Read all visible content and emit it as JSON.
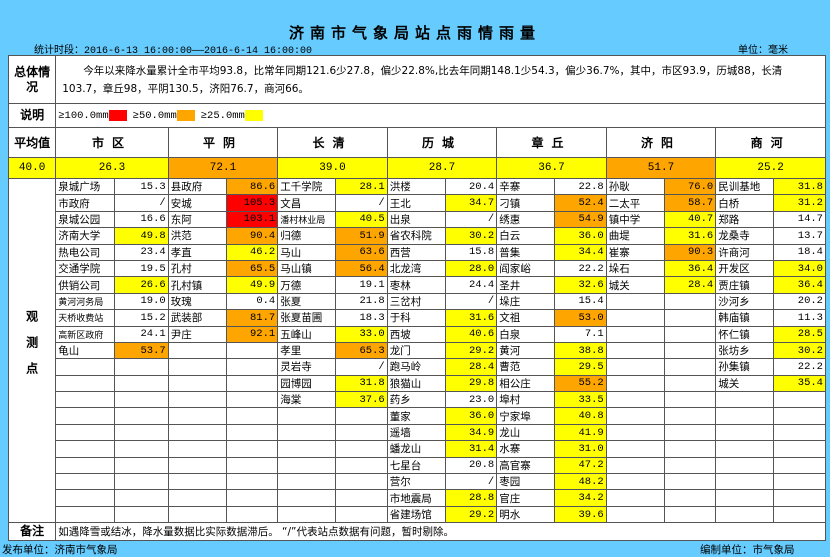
{
  "title": "济南市气象局站点雨情雨量",
  "period": "统计时段：2016-6-13 16:00:00——2016-6-14 16:00:00",
  "unit": "单位：毫米",
  "summary": {
    "label": "总体情况",
    "text": "今年以来降水量累计全市平均93.8，比常年同期121.6少27.8，偏少22.8%,比去年同期148.1少54.3，偏少36.7%，其中，市区93.9，历城88，长清103.7，章丘98，平阴130.5，济阳76.7，商河66。"
  },
  "legend": {
    "label": "说明",
    "items": [
      {
        "text": "≥100.0mm",
        "color": "#ff0000",
        "min": 100
      },
      {
        "text": "≥50.0mm",
        "color": "#ffa500",
        "min": 50
      },
      {
        "text": "≥25.0mm",
        "color": "#ffff00",
        "min": 25
      }
    ]
  },
  "average": {
    "label": "平均值",
    "value": "40.0"
  },
  "stations_label": "观测点",
  "districts": [
    {
      "name": "市区",
      "avg": "26.3",
      "stations": [
        [
          "泉城广场",
          "15.3"
        ],
        [
          "市政府",
          "/"
        ],
        [
          "泉城公园",
          "16.6"
        ],
        [
          "济南大学",
          "49.8"
        ],
        [
          "热电公司",
          "23.4"
        ],
        [
          "交通学院",
          "19.5"
        ],
        [
          "供销公司",
          "26.6"
        ],
        [
          "黄河河务局",
          "19.0"
        ],
        [
          "天桥收费站",
          "15.2"
        ],
        [
          "高新区政府",
          "24.1"
        ],
        [
          "龟山",
          "53.7"
        ]
      ]
    },
    {
      "name": "平阴",
      "avg": "72.1",
      "stations": [
        [
          "县政府",
          "86.6"
        ],
        [
          "安城",
          "105.3"
        ],
        [
          "东阿",
          "103.1"
        ],
        [
          "洪范",
          "90.4"
        ],
        [
          "孝直",
          "46.2"
        ],
        [
          "孔村",
          "65.5"
        ],
        [
          "孔村镇",
          "49.9"
        ],
        [
          "玫瑰",
          "0.4"
        ],
        [
          "武装部",
          "81.7"
        ],
        [
          "尹庄",
          "92.1"
        ]
      ]
    },
    {
      "name": "长清",
      "avg": "39.0",
      "stations": [
        [
          "工千学院",
          "28.1"
        ],
        [
          "文昌",
          "/"
        ],
        [
          "潘村林业局",
          "40.5"
        ],
        [
          "归德",
          "51.9"
        ],
        [
          "马山",
          "63.6"
        ],
        [
          "马山镇",
          "56.4"
        ],
        [
          "万德",
          "19.1"
        ],
        [
          "张夏",
          "21.8"
        ],
        [
          "张夏苗圃",
          "18.3"
        ],
        [
          "五峰山",
          "33.0"
        ],
        [
          "孝里",
          "65.3"
        ],
        [
          "灵岩寺",
          "/"
        ],
        [
          "园博园",
          "31.8"
        ],
        [
          "海棠",
          "37.6"
        ]
      ]
    },
    {
      "name": "历城",
      "avg": "28.7",
      "stations": [
        [
          "洪楼",
          "20.4"
        ],
        [
          "王北",
          "34.7"
        ],
        [
          "出泉",
          "/"
        ],
        [
          "省农科院",
          "30.2"
        ],
        [
          "西营",
          "15.8"
        ],
        [
          "北龙湾",
          "28.0"
        ],
        [
          "枣林",
          "24.4"
        ],
        [
          "三岔村",
          "/"
        ],
        [
          "于科",
          "31.6"
        ],
        [
          "西坡",
          "40.6"
        ],
        [
          "龙门",
          "29.2"
        ],
        [
          "跑马岭",
          "28.4"
        ],
        [
          "狼猫山",
          "29.8"
        ],
        [
          "药乡",
          "23.0"
        ],
        [
          "董家",
          "36.0"
        ],
        [
          "遥墙",
          "34.9"
        ],
        [
          "蟠龙山",
          "31.4"
        ],
        [
          "七星台",
          "20.8"
        ],
        [
          "营尔",
          "/"
        ],
        [
          "市地震局",
          "28.8"
        ],
        [
          "省建场馆",
          "29.2"
        ]
      ]
    },
    {
      "name": "章丘",
      "avg": "36.7",
      "stations": [
        [
          "辛寨",
          "22.8"
        ],
        [
          "刁镇",
          "52.4"
        ],
        [
          "绣惠",
          "54.9"
        ],
        [
          "白云",
          "36.0"
        ],
        [
          "普集",
          "34.4"
        ],
        [
          "阎家峪",
          "22.2"
        ],
        [
          "圣井",
          "32.6"
        ],
        [
          "垛庄",
          "15.4"
        ],
        [
          "文祖",
          "53.0"
        ],
        [
          "白泉",
          "7.1"
        ],
        [
          "黄河",
          "38.8"
        ],
        [
          "曹范",
          "29.5"
        ],
        [
          "相公庄",
          "55.2"
        ],
        [
          "埠村",
          "33.5"
        ],
        [
          "宁家埠",
          "40.8"
        ],
        [
          "龙山",
          "41.9"
        ],
        [
          "水寨",
          "31.0"
        ],
        [
          "高官寨",
          "47.2"
        ],
        [
          "枣园",
          "48.2"
        ],
        [
          "官庄",
          "34.2"
        ],
        [
          "明水",
          "39.6"
        ]
      ]
    },
    {
      "name": "济阳",
      "avg": "51.7",
      "stations": [
        [
          "孙耿",
          "76.0"
        ],
        [
          "二太平",
          "58.7"
        ],
        [
          "镇中学",
          "40.7"
        ],
        [
          "曲堤",
          "31.6"
        ],
        [
          "崔寨",
          "90.3"
        ],
        [
          "垛石",
          "36.4"
        ],
        [
          "城关",
          "28.4"
        ]
      ]
    },
    {
      "name": "商河",
      "avg": "25.2",
      "stations": [
        [
          "民训基地",
          "31.8"
        ],
        [
          "白桥",
          "31.2"
        ],
        [
          "郑路",
          "14.7"
        ],
        [
          "龙桑寺",
          "13.7"
        ],
        [
          "许商河",
          "18.4"
        ],
        [
          "开发区",
          "34.0"
        ],
        [
          "贾庄镇",
          "36.4"
        ],
        [
          "沙河乡",
          "20.2"
        ],
        [
          "韩庙镇",
          "11.3"
        ],
        [
          "怀仁镇",
          "28.5"
        ],
        [
          "张坊乡",
          "30.2"
        ],
        [
          "孙集镇",
          "22.2"
        ],
        [
          "城关",
          "35.4"
        ]
      ]
    }
  ],
  "note": {
    "label": "备注",
    "text": "如遇降雪或结冰，降水量数据比实际数据滞后。 “/”代表站点数据有问题，暂时剔除。"
  },
  "footer": {
    "publisher": "发布单位：济南市气象局",
    "compiler": "编制单位：市气象局"
  },
  "colors": {
    "background": "#66ccff",
    "red": "#ff0000",
    "orange": "#ffa500",
    "yellow": "#ffff00"
  }
}
